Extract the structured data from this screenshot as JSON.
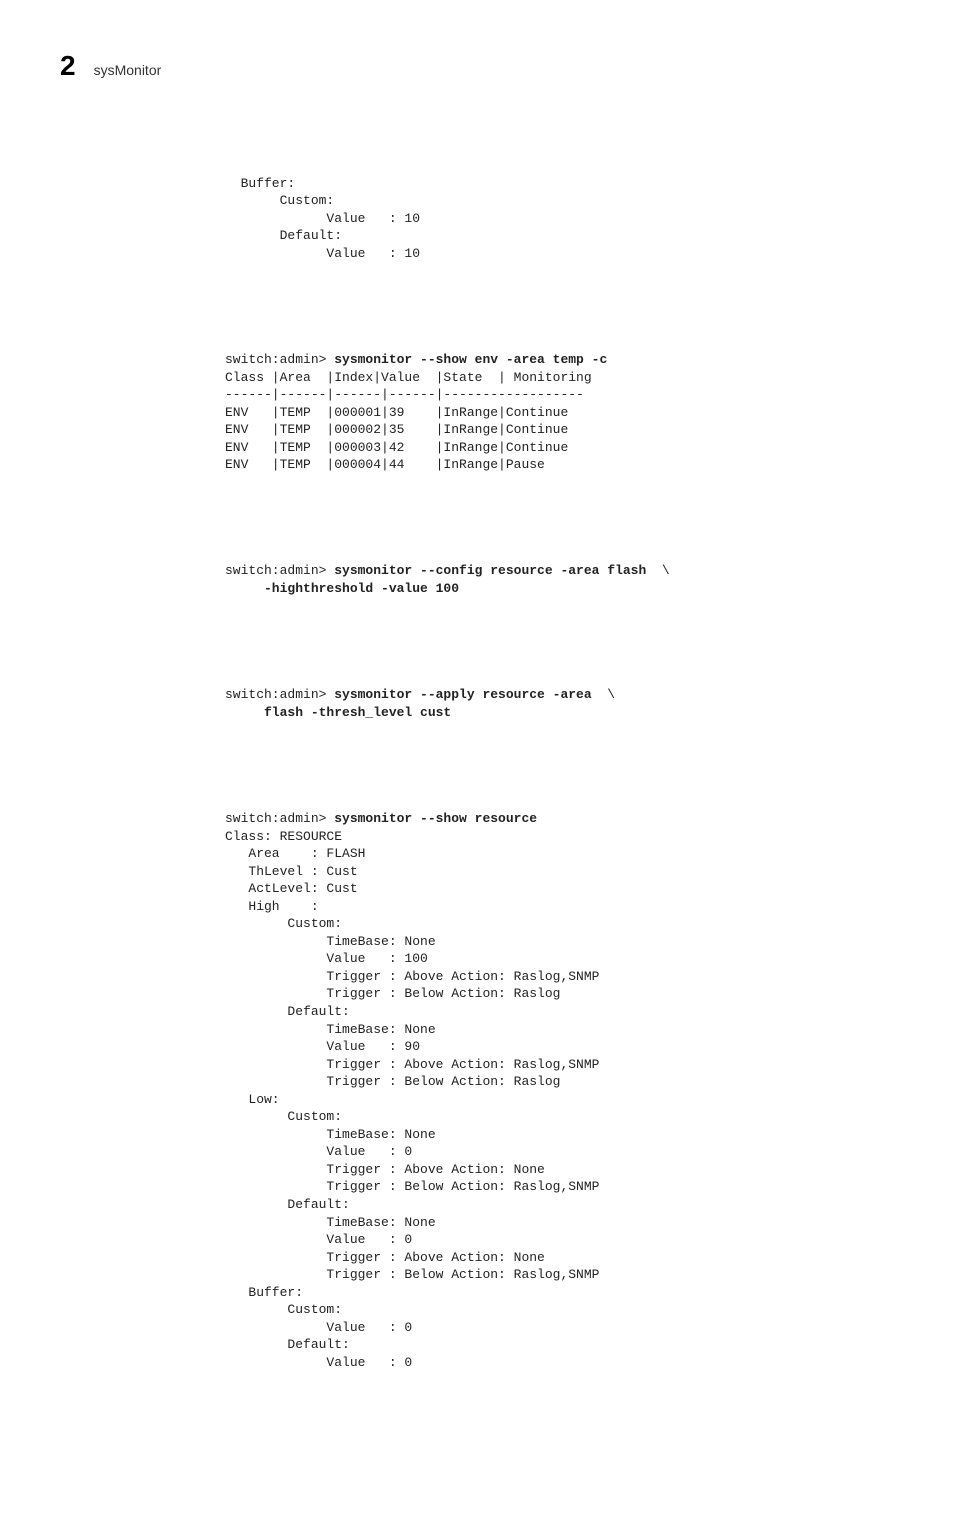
{
  "header": {
    "chapter_number": "2",
    "title": "sysMonitor"
  },
  "blocks": {
    "b0": [
      "  Buffer:",
      "       Custom:",
      "             Value   : 10",
      "       Default:",
      "             Value   : 10"
    ],
    "b1_prompt": "switch:admin> ",
    "b1_cmd": "sysmonitor --show env -area temp -c",
    "b1_rest": [
      "Class |Area  |Index|Value  |State  | Monitoring",
      "------|------|------|------|------------------",
      "ENV   |TEMP  |000001|39    |InRange|Continue",
      "ENV   |TEMP  |000002|35    |InRange|Continue",
      "ENV   |TEMP  |000003|42    |InRange|Continue",
      "ENV   |TEMP  |000004|44    |InRange|Pause"
    ],
    "b2_prompt": "switch:admin> ",
    "b2_cmd1": "sysmonitor --config resource -area flash",
    "b2_cont": "  \\",
    "b2_cmd2": "     -highthreshold -value 100",
    "b3_prompt": "switch:admin> ",
    "b3_cmd1": "sysmonitor --apply resource -area",
    "b3_cont": "  \\",
    "b3_cmd2": "     flash -thresh_level cust",
    "b4_prompt": "switch:admin> ",
    "b4_cmd": "sysmonitor --show resource",
    "b4_rest": [
      "Class: RESOURCE",
      "   Area    : FLASH",
      "   ThLevel : Cust",
      "   ActLevel: Cust",
      "   High    :",
      "        Custom:",
      "             TimeBase: None",
      "             Value   : 100",
      "             Trigger : Above Action: Raslog,SNMP",
      "             Trigger : Below Action: Raslog",
      "        Default:",
      "             TimeBase: None",
      "             Value   : 90",
      "             Trigger : Above Action: Raslog,SNMP",
      "             Trigger : Below Action: Raslog",
      "   Low:",
      "        Custom:",
      "             TimeBase: None",
      "             Value   : 0",
      "             Trigger : Above Action: None",
      "             Trigger : Below Action: Raslog,SNMP",
      "        Default:",
      "             TimeBase: None",
      "             Value   : 0",
      "             Trigger : Above Action: None",
      "             Trigger : Below Action: Raslog,SNMP",
      "   Buffer:",
      "        Custom:",
      "             Value   : 0",
      "        Default:",
      "             Value   : 0"
    ]
  }
}
